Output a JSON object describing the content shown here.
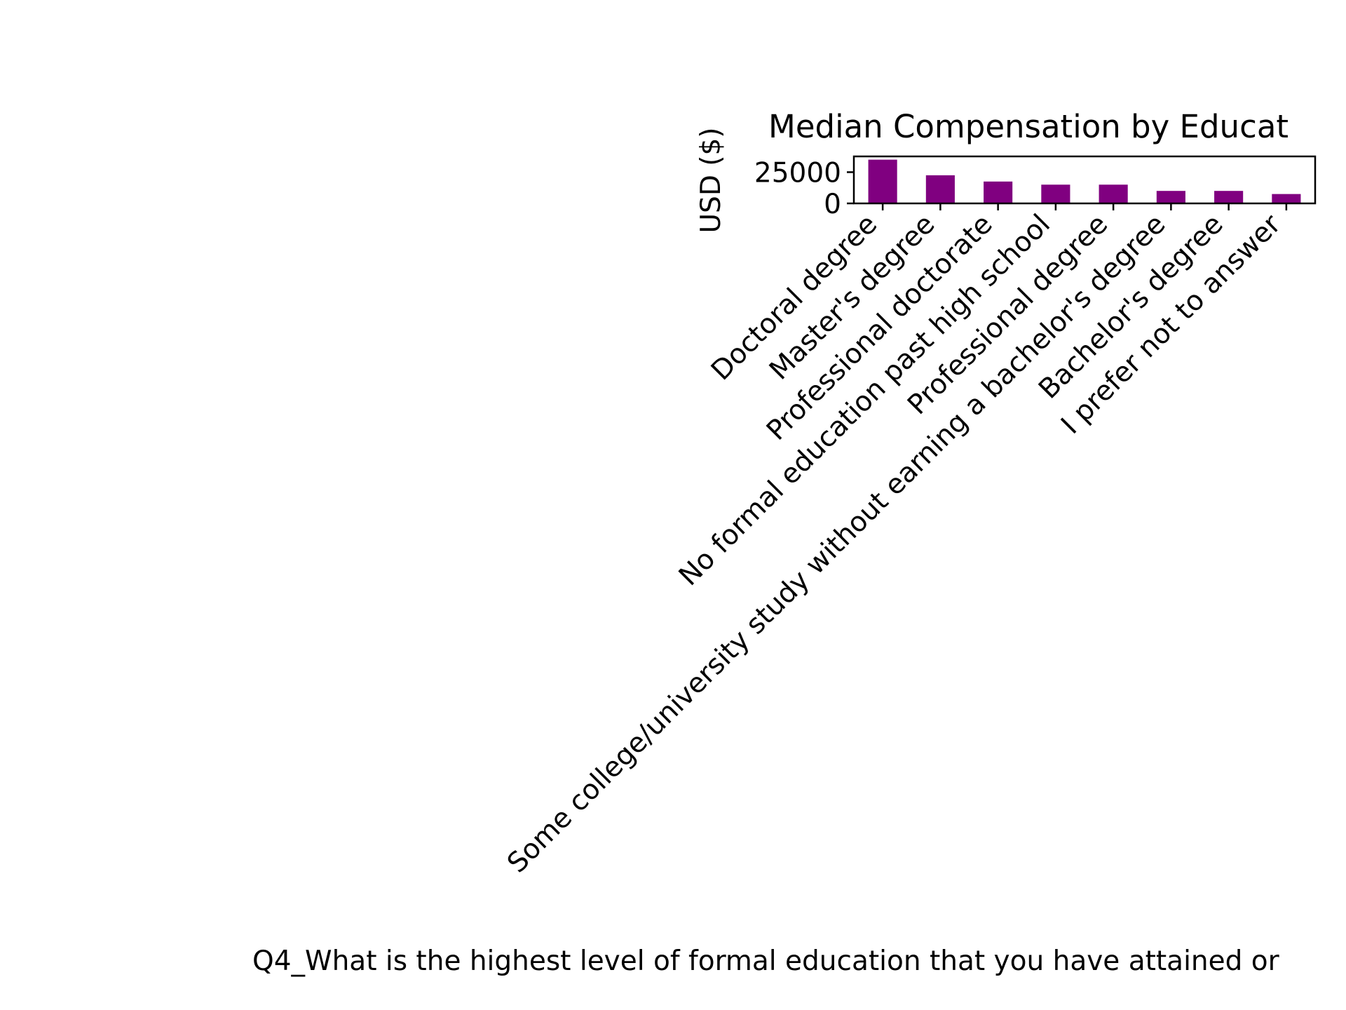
{
  "chart_data": {
    "type": "bar",
    "title": "Median Compensation by Educat",
    "xlabel": "Q4_What is the highest level of formal education that you have attained or",
    "ylabel": "USD ($)",
    "categories": [
      "Doctoral degree",
      "Master's degree",
      "Professional doctorate",
      "No formal education past high school",
      "Professional degree",
      "Some college/university study without earning a bachelor's degree",
      "Bachelor's degree",
      "I prefer not to answer"
    ],
    "values": [
      35000,
      22500,
      17500,
      15000,
      15000,
      10000,
      10000,
      7500
    ],
    "ylim": [
      0,
      37600
    ],
    "yticks": [
      0,
      25000
    ],
    "grid": false,
    "bar_color": "#800080"
  }
}
